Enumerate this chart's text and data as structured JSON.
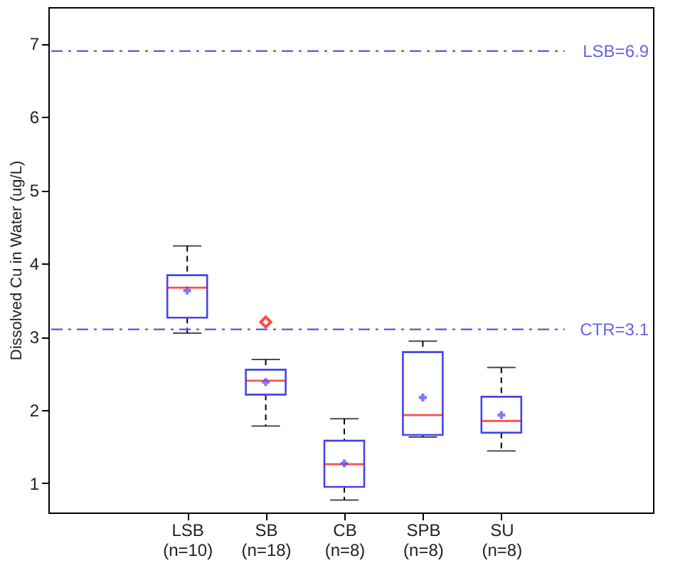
{
  "chart_data": {
    "type": "box",
    "ylabel": "Dissolved Cu in Water (ug/L)",
    "categories": [
      "LSB (n=10)",
      "SB (n=18)",
      "CB (n=8)",
      "SPB (n=8)",
      "SU (n=8)"
    ],
    "series": [
      {
        "color": "#4444ee",
        "boxes": [
          {
            "low": 3.05,
            "q1": 3.26,
            "median": 3.67,
            "q3": 3.84,
            "high": 4.24,
            "mean": 3.63
          },
          {
            "low": 1.78,
            "q1": 2.21,
            "median": 2.4,
            "q3": 2.55,
            "high": 2.69,
            "mean": 2.38,
            "outliers": [
              3.2
            ]
          },
          {
            "low": 0.77,
            "q1": 0.95,
            "median": 1.26,
            "q3": 1.58,
            "high": 1.88,
            "mean": 1.27
          },
          {
            "low": 1.63,
            "q1": 1.66,
            "median": 1.93,
            "q3": 2.79,
            "high": 2.94,
            "mean": 2.17
          },
          {
            "low": 1.44,
            "q1": 1.69,
            "median": 1.85,
            "q3": 2.18,
            "high": 2.58,
            "mean": 1.93
          }
        ]
      }
    ],
    "ylim": [
      0.6,
      7.5
    ],
    "yticks": [
      1,
      2,
      3,
      4,
      5,
      6,
      7
    ],
    "ref_lines": [
      {
        "axis": "y",
        "value": 6.9,
        "label": "LSB=6.9",
        "color": "#6666dd",
        "line_style": "dashed"
      },
      {
        "axis": "y",
        "value": 3.1,
        "label": "CTR=3.1",
        "color": "#6666dd",
        "line_style": "dashed"
      }
    ],
    "grid": false
  }
}
